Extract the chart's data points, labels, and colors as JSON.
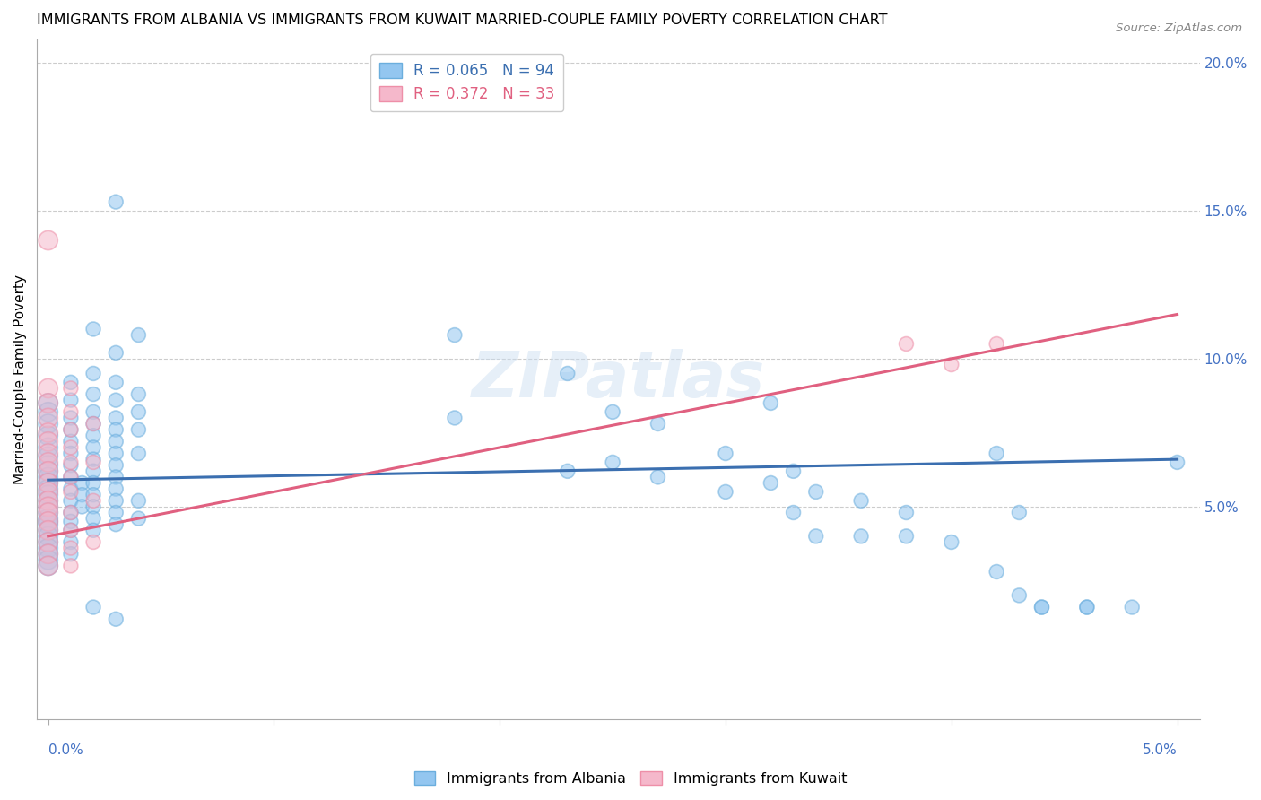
{
  "title": "IMMIGRANTS FROM ALBANIA VS IMMIGRANTS FROM KUWAIT MARRIED-COUPLE FAMILY POVERTY CORRELATION CHART",
  "source": "Source: ZipAtlas.com",
  "ylabel": "Married-Couple Family Poverty",
  "ylabel_right_ticks": [
    "20.0%",
    "15.0%",
    "10.0%",
    "5.0%"
  ],
  "ylabel_right_vals": [
    0.2,
    0.15,
    0.1,
    0.05
  ],
  "xlim": [
    -0.0005,
    0.051
  ],
  "ylim": [
    -0.022,
    0.208
  ],
  "albania_color": "#93C6F0",
  "kuwait_color": "#F5B8CB",
  "albania_edge_color": "#6BAEDD",
  "kuwait_edge_color": "#EE8FA8",
  "albania_line_color": "#3B6FB0",
  "kuwait_line_color": "#E06080",
  "watermark": "ZIPatlas",
  "alb_line_x0": 0.0,
  "alb_line_y0": 0.059,
  "alb_line_x1": 0.05,
  "alb_line_y1": 0.066,
  "kuw_line_x0": 0.0,
  "kuw_line_y0": 0.04,
  "kuw_line_x1": 0.05,
  "kuw_line_y1": 0.115,
  "albania_points": [
    [
      0.0,
      0.085
    ],
    [
      0.0,
      0.082
    ],
    [
      0.0,
      0.078
    ],
    [
      0.0,
      0.074
    ],
    [
      0.0,
      0.07
    ],
    [
      0.0,
      0.067
    ],
    [
      0.0,
      0.064
    ],
    [
      0.0,
      0.062
    ],
    [
      0.0,
      0.06
    ],
    [
      0.0,
      0.058
    ],
    [
      0.0,
      0.056
    ],
    [
      0.0,
      0.054
    ],
    [
      0.0,
      0.052
    ],
    [
      0.0,
      0.05
    ],
    [
      0.0,
      0.048
    ],
    [
      0.0,
      0.046
    ],
    [
      0.0,
      0.045
    ],
    [
      0.0,
      0.044
    ],
    [
      0.0,
      0.042
    ],
    [
      0.0,
      0.04
    ],
    [
      0.0,
      0.038
    ],
    [
      0.0,
      0.036
    ],
    [
      0.0,
      0.034
    ],
    [
      0.0,
      0.032
    ],
    [
      0.0,
      0.03
    ],
    [
      0.001,
      0.092
    ],
    [
      0.001,
      0.086
    ],
    [
      0.001,
      0.08
    ],
    [
      0.001,
      0.076
    ],
    [
      0.001,
      0.072
    ],
    [
      0.001,
      0.068
    ],
    [
      0.001,
      0.064
    ],
    [
      0.001,
      0.06
    ],
    [
      0.001,
      0.056
    ],
    [
      0.001,
      0.052
    ],
    [
      0.001,
      0.048
    ],
    [
      0.001,
      0.045
    ],
    [
      0.001,
      0.042
    ],
    [
      0.001,
      0.038
    ],
    [
      0.001,
      0.034
    ],
    [
      0.0015,
      0.058
    ],
    [
      0.0015,
      0.054
    ],
    [
      0.0015,
      0.05
    ],
    [
      0.002,
      0.11
    ],
    [
      0.002,
      0.095
    ],
    [
      0.002,
      0.088
    ],
    [
      0.002,
      0.082
    ],
    [
      0.002,
      0.078
    ],
    [
      0.002,
      0.074
    ],
    [
      0.002,
      0.07
    ],
    [
      0.002,
      0.066
    ],
    [
      0.002,
      0.062
    ],
    [
      0.002,
      0.058
    ],
    [
      0.002,
      0.054
    ],
    [
      0.002,
      0.05
    ],
    [
      0.002,
      0.046
    ],
    [
      0.002,
      0.042
    ],
    [
      0.002,
      0.016
    ],
    [
      0.003,
      0.153
    ],
    [
      0.003,
      0.102
    ],
    [
      0.003,
      0.092
    ],
    [
      0.003,
      0.086
    ],
    [
      0.003,
      0.08
    ],
    [
      0.003,
      0.076
    ],
    [
      0.003,
      0.072
    ],
    [
      0.003,
      0.068
    ],
    [
      0.003,
      0.064
    ],
    [
      0.003,
      0.06
    ],
    [
      0.003,
      0.056
    ],
    [
      0.003,
      0.052
    ],
    [
      0.003,
      0.048
    ],
    [
      0.003,
      0.044
    ],
    [
      0.003,
      0.012
    ],
    [
      0.004,
      0.108
    ],
    [
      0.004,
      0.088
    ],
    [
      0.004,
      0.082
    ],
    [
      0.004,
      0.076
    ],
    [
      0.004,
      0.068
    ],
    [
      0.004,
      0.052
    ],
    [
      0.004,
      0.046
    ],
    [
      0.018,
      0.108
    ],
    [
      0.018,
      0.08
    ],
    [
      0.023,
      0.095
    ],
    [
      0.023,
      0.062
    ],
    [
      0.025,
      0.082
    ],
    [
      0.025,
      0.065
    ],
    [
      0.027,
      0.078
    ],
    [
      0.027,
      0.06
    ],
    [
      0.03,
      0.068
    ],
    [
      0.03,
      0.055
    ],
    [
      0.032,
      0.085
    ],
    [
      0.032,
      0.058
    ],
    [
      0.033,
      0.062
    ],
    [
      0.033,
      0.048
    ],
    [
      0.034,
      0.055
    ],
    [
      0.034,
      0.04
    ],
    [
      0.036,
      0.052
    ],
    [
      0.036,
      0.04
    ],
    [
      0.038,
      0.048
    ],
    [
      0.038,
      0.04
    ],
    [
      0.04,
      0.038
    ],
    [
      0.042,
      0.068
    ],
    [
      0.042,
      0.028
    ],
    [
      0.043,
      0.048
    ],
    [
      0.043,
      0.02
    ],
    [
      0.044,
      0.016
    ],
    [
      0.044,
      0.016
    ],
    [
      0.046,
      0.016
    ],
    [
      0.046,
      0.016
    ],
    [
      0.048,
      0.016
    ],
    [
      0.05,
      0.065
    ]
  ],
  "kuwait_points": [
    [
      0.0,
      0.14
    ],
    [
      0.0,
      0.09
    ],
    [
      0.0,
      0.085
    ],
    [
      0.0,
      0.08
    ],
    [
      0.0,
      0.075
    ],
    [
      0.0,
      0.072
    ],
    [
      0.0,
      0.068
    ],
    [
      0.0,
      0.065
    ],
    [
      0.0,
      0.062
    ],
    [
      0.0,
      0.058
    ],
    [
      0.0,
      0.055
    ],
    [
      0.0,
      0.052
    ],
    [
      0.0,
      0.05
    ],
    [
      0.0,
      0.048
    ],
    [
      0.0,
      0.045
    ],
    [
      0.0,
      0.042
    ],
    [
      0.0,
      0.038
    ],
    [
      0.0,
      0.034
    ],
    [
      0.0,
      0.03
    ],
    [
      0.001,
      0.09
    ],
    [
      0.001,
      0.082
    ],
    [
      0.001,
      0.076
    ],
    [
      0.001,
      0.07
    ],
    [
      0.001,
      0.065
    ],
    [
      0.001,
      0.06
    ],
    [
      0.001,
      0.055
    ],
    [
      0.001,
      0.048
    ],
    [
      0.001,
      0.042
    ],
    [
      0.001,
      0.036
    ],
    [
      0.001,
      0.03
    ],
    [
      0.002,
      0.078
    ],
    [
      0.002,
      0.065
    ],
    [
      0.002,
      0.052
    ],
    [
      0.002,
      0.038
    ],
    [
      0.038,
      0.105
    ],
    [
      0.04,
      0.098
    ],
    [
      0.042,
      0.105
    ]
  ],
  "scatter_size": 130,
  "scatter_alpha": 0.55,
  "large_cluster_size": 350
}
